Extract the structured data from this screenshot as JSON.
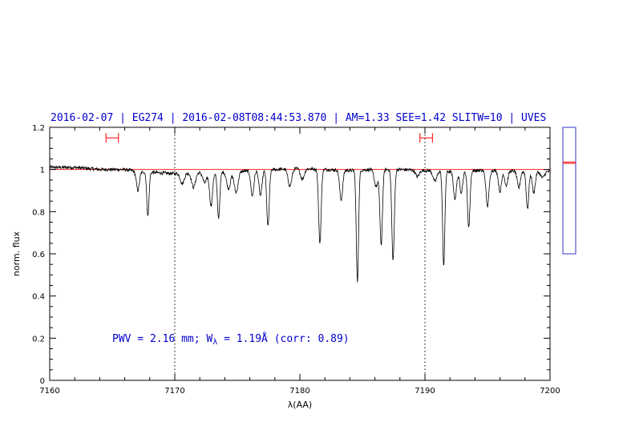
{
  "chart_data": {
    "type": "line",
    "title": "2016-02-07 | EG274 | 2016-02-08T08:44:53.870 | AM=1.33 SEE=1.42 SLITW=10 | UVES",
    "xlabel": "λ(AA)",
    "ylabel": "norm. flux",
    "xlim": [
      7160,
      7200
    ],
    "ylim": [
      0,
      1.2
    ],
    "x_ticks": [
      "7160",
      "7170",
      "7180",
      "7190",
      "7200"
    ],
    "y_ticks": [
      "0",
      "0.2",
      "0.4",
      "0.6",
      "0.8",
      "1",
      "1.2"
    ],
    "grid": false,
    "reference_lines": [
      7170,
      7190
    ],
    "continuum_level": 1.0,
    "annotation": "PWV = 2.16 mm; W_λ = 1.19Å (corr: 0.89)",
    "annotation_parts": {
      "before": "PWV = 2.16 mm; W",
      "subscript": "λ",
      "after": " = 1.19Å (corr: 0.89)"
    },
    "intervals": [
      {
        "x": [
          7164.5,
          7165.5
        ],
        "y": 1.15
      },
      {
        "x": [
          7189.6,
          7190.6
        ],
        "y": 1.15
      }
    ],
    "side_panel": {
      "range": [
        0,
        1
      ],
      "markers": [
        0.715,
        0.725
      ]
    },
    "continuum_points": [
      [
        7160,
        1.01
      ],
      [
        7162,
        1.01
      ],
      [
        7164,
        1.0
      ],
      [
        7166,
        1.0
      ],
      [
        7167,
        0.99
      ],
      [
        7170,
        0.98
      ],
      [
        7172,
        0.985
      ],
      [
        7175,
        0.99
      ],
      [
        7178,
        1.0
      ],
      [
        7180,
        1.005
      ],
      [
        7182,
        1.0
      ],
      [
        7184,
        0.995
      ],
      [
        7186,
        1.0
      ],
      [
        7188,
        1.0
      ],
      [
        7190,
        0.995
      ],
      [
        7192,
        0.99
      ],
      [
        7194,
        0.995
      ],
      [
        7196,
        0.995
      ],
      [
        7198,
        0.99
      ],
      [
        7200,
        0.99
      ]
    ],
    "absorption_lines": [
      {
        "center": 7167.05,
        "depth": 0.09,
        "width": 0.12
      },
      {
        "center": 7167.85,
        "depth": 0.21,
        "width": 0.09
      },
      {
        "center": 7170.6,
        "depth": 0.05,
        "width": 0.15
      },
      {
        "center": 7171.5,
        "depth": 0.07,
        "width": 0.15
      },
      {
        "center": 7172.4,
        "depth": 0.05,
        "width": 0.15
      },
      {
        "center": 7172.9,
        "depth": 0.16,
        "width": 0.12
      },
      {
        "center": 7173.5,
        "depth": 0.22,
        "width": 0.1
      },
      {
        "center": 7174.3,
        "depth": 0.08,
        "width": 0.15
      },
      {
        "center": 7174.9,
        "depth": 0.1,
        "width": 0.15
      },
      {
        "center": 7176.2,
        "depth": 0.12,
        "width": 0.12
      },
      {
        "center": 7176.85,
        "depth": 0.12,
        "width": 0.12
      },
      {
        "center": 7177.45,
        "depth": 0.27,
        "width": 0.1
      },
      {
        "center": 7179.2,
        "depth": 0.08,
        "width": 0.15
      },
      {
        "center": 7180.2,
        "depth": 0.05,
        "width": 0.15
      },
      {
        "center": 7181.6,
        "depth": 0.35,
        "width": 0.1
      },
      {
        "center": 7183.3,
        "depth": 0.14,
        "width": 0.12
      },
      {
        "center": 7184.6,
        "depth": 0.53,
        "width": 0.09
      },
      {
        "center": 7186.1,
        "depth": 0.08,
        "width": 0.15
      },
      {
        "center": 7186.5,
        "depth": 0.36,
        "width": 0.1
      },
      {
        "center": 7187.45,
        "depth": 0.43,
        "width": 0.1
      },
      {
        "center": 7189.4,
        "depth": 0.03,
        "width": 0.15
      },
      {
        "center": 7190.8,
        "depth": 0.05,
        "width": 0.15
      },
      {
        "center": 7191.5,
        "depth": 0.45,
        "width": 0.09
      },
      {
        "center": 7192.4,
        "depth": 0.13,
        "width": 0.12
      },
      {
        "center": 7192.9,
        "depth": 0.1,
        "width": 0.12
      },
      {
        "center": 7193.5,
        "depth": 0.27,
        "width": 0.1
      },
      {
        "center": 7195.0,
        "depth": 0.17,
        "width": 0.12
      },
      {
        "center": 7196.0,
        "depth": 0.1,
        "width": 0.12
      },
      {
        "center": 7196.5,
        "depth": 0.07,
        "width": 0.12
      },
      {
        "center": 7197.5,
        "depth": 0.08,
        "width": 0.12
      },
      {
        "center": 7198.2,
        "depth": 0.18,
        "width": 0.1
      },
      {
        "center": 7198.7,
        "depth": 0.1,
        "width": 0.12
      },
      {
        "center": 7199.4,
        "depth": 0.03,
        "width": 0.15
      }
    ],
    "noise_amplitude": 0.008,
    "colors": {
      "axes": "#000000",
      "spectrum": "#000000",
      "continuum": "#ff0000",
      "reference_lines": "#000000",
      "intervals": "#ff0000",
      "title": "#0000cc",
      "annotation": "#0000cc",
      "side_panel_border": "#3333cc",
      "side_panel_markers": "#ff0000"
    }
  }
}
